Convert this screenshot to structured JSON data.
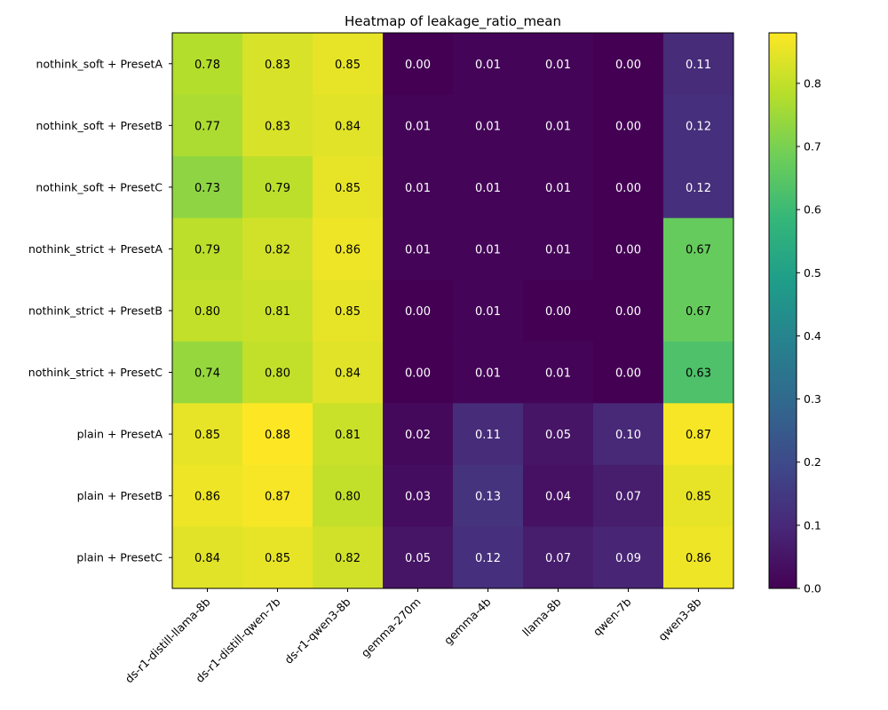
{
  "chart_data": {
    "type": "heatmap",
    "title": "Heatmap of leakage_ratio_mean",
    "xlabel": "",
    "ylabel": "",
    "columns": [
      "ds-r1-distill-llama-8b",
      "ds-r1-distill-qwen-7b",
      "ds-r1-qwen3-8b",
      "gemma-270m",
      "gemma-4b",
      "llama-8b",
      "qwen-7b",
      "qwen3-8b"
    ],
    "rows": [
      "nothink_soft + PresetA",
      "nothink_soft + PresetB",
      "nothink_soft + PresetC",
      "nothink_strict + PresetA",
      "nothink_strict + PresetB",
      "nothink_strict + PresetC",
      "plain + PresetA",
      "plain + PresetB",
      "plain + PresetC"
    ],
    "values": [
      [
        0.78,
        0.83,
        0.85,
        0.0,
        0.01,
        0.01,
        0.0,
        0.11
      ],
      [
        0.77,
        0.83,
        0.84,
        0.01,
        0.01,
        0.01,
        0.0,
        0.12
      ],
      [
        0.73,
        0.79,
        0.85,
        0.01,
        0.01,
        0.01,
        0.0,
        0.12
      ],
      [
        0.79,
        0.82,
        0.86,
        0.01,
        0.01,
        0.01,
        0.0,
        0.67
      ],
      [
        0.8,
        0.81,
        0.85,
        0.0,
        0.01,
        0.0,
        0.0,
        0.67
      ],
      [
        0.74,
        0.8,
        0.84,
        0.0,
        0.01,
        0.01,
        0.0,
        0.63
      ],
      [
        0.85,
        0.88,
        0.81,
        0.02,
        0.11,
        0.05,
        0.1,
        0.87
      ],
      [
        0.86,
        0.87,
        0.8,
        0.03,
        0.13,
        0.04,
        0.07,
        0.85
      ],
      [
        0.84,
        0.85,
        0.82,
        0.05,
        0.12,
        0.07,
        0.09,
        0.86
      ]
    ],
    "colormap": "viridis",
    "vmin": 0.0,
    "vmax": 0.88,
    "colorbar_ticks": [
      "0.0",
      "0.1",
      "0.2",
      "0.3",
      "0.4",
      "0.5",
      "0.6",
      "0.7",
      "0.8"
    ],
    "grid": false
  }
}
